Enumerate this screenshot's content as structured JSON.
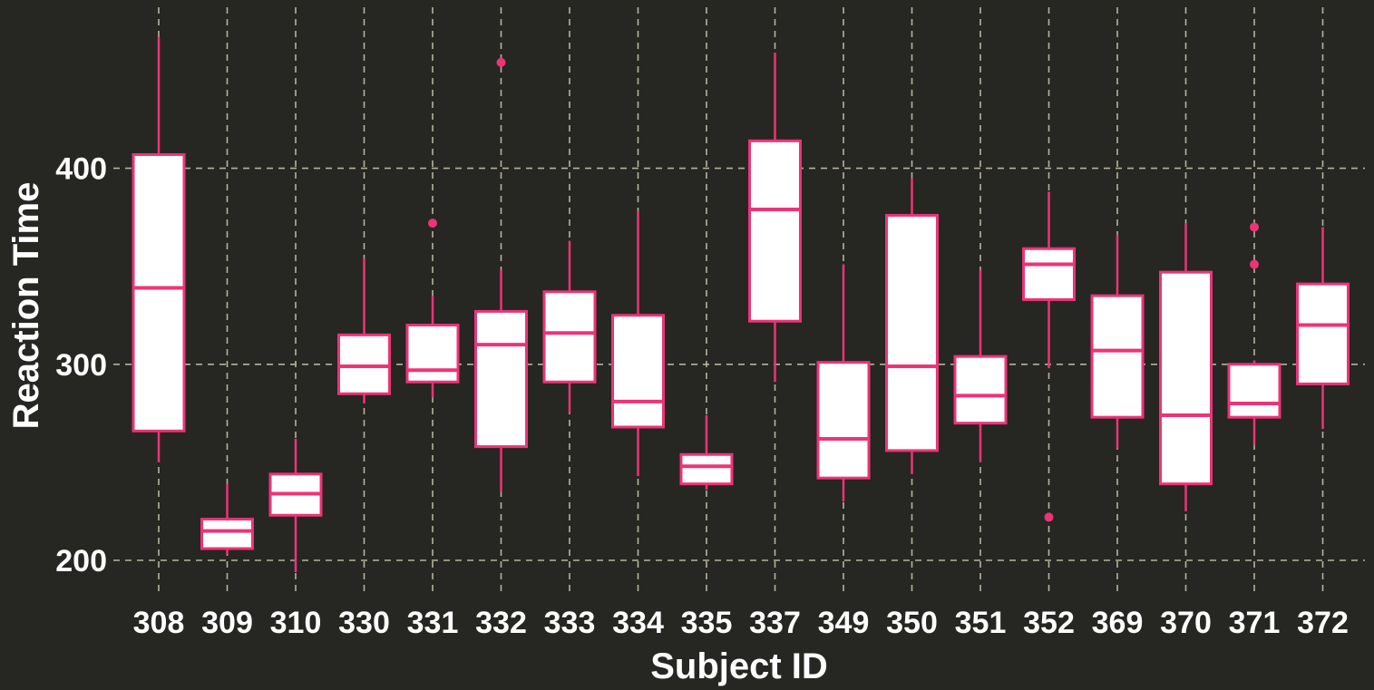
{
  "chart_data": {
    "type": "boxplot",
    "title": "",
    "xlabel": "Subject ID",
    "ylabel": "Reaction Time",
    "ylim": [
      182,
      471
    ],
    "yticks": [
      200,
      300,
      400
    ],
    "grid": true,
    "colors": {
      "background": "#262623",
      "box_fill": "#ffffff",
      "box_stroke": "#ee3377",
      "grid": "#b6b39c",
      "text": "#ffffff"
    },
    "categories": [
      "308",
      "309",
      "310",
      "330",
      "331",
      "332",
      "333",
      "334",
      "335",
      "337",
      "349",
      "350",
      "351",
      "352",
      "369",
      "370",
      "371",
      "372"
    ],
    "boxes": [
      {
        "category": "308",
        "whisker_low": 250,
        "q1": 266,
        "median": 339,
        "q3": 407,
        "whisker_high": 467,
        "outliers": []
      },
      {
        "category": "309",
        "whisker_low": 203,
        "q1": 206,
        "median": 215,
        "q3": 221,
        "whisker_high": 239,
        "outliers": []
      },
      {
        "category": "310",
        "whisker_low": 194,
        "q1": 223,
        "median": 234,
        "q3": 244,
        "whisker_high": 262,
        "outliers": []
      },
      {
        "category": "330",
        "whisker_low": 280,
        "q1": 285,
        "median": 299,
        "q3": 315,
        "whisker_high": 354,
        "outliers": []
      },
      {
        "category": "331",
        "whisker_low": 283,
        "q1": 291,
        "median": 297,
        "q3": 320,
        "whisker_high": 335,
        "outliers": [
          372
        ]
      },
      {
        "category": "332",
        "whisker_low": 235,
        "q1": 258,
        "median": 310,
        "q3": 327,
        "whisker_high": 348,
        "outliers": [
          454
        ]
      },
      {
        "category": "333",
        "whisker_low": 275,
        "q1": 291,
        "median": 316,
        "q3": 337,
        "whisker_high": 363,
        "outliers": []
      },
      {
        "category": "334",
        "whisker_low": 243,
        "q1": 268,
        "median": 281,
        "q3": 325,
        "whisker_high": 378,
        "outliers": []
      },
      {
        "category": "335",
        "whisker_low": 236,
        "q1": 239,
        "median": 248,
        "q3": 254,
        "whisker_high": 274,
        "outliers": []
      },
      {
        "category": "337",
        "whisker_low": 291,
        "q1": 322,
        "median": 379,
        "q3": 414,
        "whisker_high": 459,
        "outliers": []
      },
      {
        "category": "349",
        "whisker_low": 230,
        "q1": 242,
        "median": 262,
        "q3": 301,
        "whisker_high": 351,
        "outliers": []
      },
      {
        "category": "350",
        "whisker_low": 244,
        "q1": 256,
        "median": 299,
        "q3": 376,
        "whisker_high": 395,
        "outliers": []
      },
      {
        "category": "351",
        "whisker_low": 250,
        "q1": 270,
        "median": 284,
        "q3": 304,
        "whisker_high": 348,
        "outliers": []
      },
      {
        "category": "352",
        "whisker_low": 298,
        "q1": 333,
        "median": 351,
        "q3": 359,
        "whisker_high": 388,
        "outliers": [
          222
        ]
      },
      {
        "category": "369",
        "whisker_low": 257,
        "q1": 273,
        "median": 307,
        "q3": 335,
        "whisker_high": 366,
        "outliers": []
      },
      {
        "category": "370",
        "whisker_low": 225,
        "q1": 239,
        "median": 274,
        "q3": 347,
        "whisker_high": 372,
        "outliers": []
      },
      {
        "category": "371",
        "whisker_low": 259,
        "q1": 273,
        "median": 280,
        "q3": 300,
        "whisker_high": 302,
        "outliers": [
          351,
          370
        ]
      },
      {
        "category": "372",
        "whisker_low": 267,
        "q1": 290,
        "median": 320,
        "q3": 341,
        "whisker_high": 370,
        "outliers": []
      }
    ]
  }
}
